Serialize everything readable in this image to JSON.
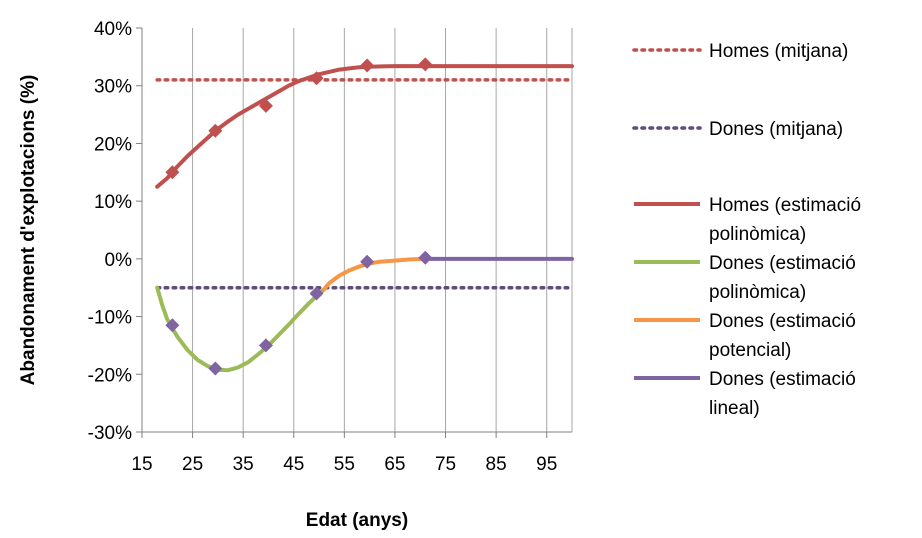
{
  "chart_data": {
    "type": "line",
    "title": "",
    "xlabel": "Edat (anys)",
    "ylabel": "Abandonament d'explotacions (%)",
    "xlim": [
      15,
      100
    ],
    "ylim": [
      -30,
      40
    ],
    "x_ticks": [
      "15",
      "25",
      "35",
      "45",
      "55",
      "65",
      "75",
      "85",
      "95"
    ],
    "y_ticks": [
      "-30%",
      "-20%",
      "-10%",
      "0%",
      "10%",
      "20%",
      "30%",
      "40%"
    ],
    "grid": "vertical",
    "legend_position": "right",
    "series": [
      {
        "key": "homes_mitjana",
        "name": "Homes (mitjana)",
        "style": "dotted",
        "color": "#c0504d",
        "points": [
          [
            18,
            31
          ],
          [
            100,
            31
          ]
        ]
      },
      {
        "key": "dones_mitjana",
        "name": "Dones (mitjana)",
        "style": "dotted",
        "color": "#604a7b",
        "points": [
          [
            18,
            -5
          ],
          [
            100,
            -5
          ]
        ]
      },
      {
        "key": "homes_poli",
        "name": "Homes (estimació polinòmica)",
        "style": "solid",
        "color": "#c0504d",
        "points": [
          [
            18,
            12.5
          ],
          [
            20,
            14
          ],
          [
            22,
            16
          ],
          [
            24,
            17.8
          ],
          [
            26,
            19.4
          ],
          [
            28,
            21
          ],
          [
            30,
            22.5
          ],
          [
            32,
            23.8
          ],
          [
            34,
            25
          ],
          [
            36,
            26
          ],
          [
            38,
            27
          ],
          [
            40,
            28
          ],
          [
            42,
            29
          ],
          [
            44,
            30
          ],
          [
            46,
            30.8
          ],
          [
            48,
            31.4
          ],
          [
            50,
            32
          ],
          [
            52,
            32.4
          ],
          [
            54,
            32.8
          ],
          [
            56,
            33
          ],
          [
            58,
            33.2
          ],
          [
            60,
            33.3
          ],
          [
            65,
            33.4
          ],
          [
            70,
            33.4
          ],
          [
            72,
            33.4
          ],
          [
            100,
            33.4
          ]
        ]
      },
      {
        "key": "dones_poli",
        "name": "Dones (estimació polinòmica)",
        "style": "solid",
        "color": "#9bbb59",
        "points": [
          [
            18,
            -5
          ],
          [
            19,
            -8
          ],
          [
            20,
            -10.5
          ],
          [
            22,
            -13.5
          ],
          [
            24,
            -15.8
          ],
          [
            26,
            -17.5
          ],
          [
            28,
            -18.6
          ],
          [
            30,
            -19.2
          ],
          [
            32,
            -19.3
          ],
          [
            34,
            -18.8
          ],
          [
            36,
            -17.9
          ],
          [
            38,
            -16.5
          ],
          [
            40,
            -15
          ],
          [
            42,
            -13.2
          ],
          [
            44,
            -11.4
          ],
          [
            46,
            -9.5
          ],
          [
            48,
            -7.7
          ],
          [
            50,
            -6
          ],
          [
            51,
            -5.3
          ]
        ]
      },
      {
        "key": "dones_pot",
        "name": "Dones (estimació potencial)",
        "style": "solid",
        "color": "#f79646",
        "points": [
          [
            51,
            -5.3
          ],
          [
            52,
            -4.2
          ],
          [
            54,
            -2.9
          ],
          [
            56,
            -2
          ],
          [
            58,
            -1.3
          ],
          [
            60,
            -0.8
          ],
          [
            62,
            -0.5
          ],
          [
            65,
            -0.3
          ],
          [
            68,
            -0.1
          ],
          [
            71,
            0
          ]
        ]
      },
      {
        "key": "dones_lin",
        "name": "Dones (estimació lineal)",
        "style": "solid",
        "color": "#8064a2",
        "points": [
          [
            71,
            0
          ],
          [
            100,
            0
          ]
        ]
      }
    ],
    "markers": [
      {
        "series": "homes_poli",
        "color": "#c0504d",
        "points": [
          [
            21,
            15
          ],
          [
            29.5,
            22.2
          ],
          [
            39.5,
            26.5
          ],
          [
            49.5,
            31.3
          ],
          [
            59.5,
            33.5
          ],
          [
            71,
            33.7
          ]
        ]
      },
      {
        "series": "dones_lin",
        "color": "#8064a2",
        "points": [
          [
            21,
            -11.5
          ],
          [
            29.5,
            -19
          ],
          [
            39.5,
            -15
          ],
          [
            49.5,
            -6
          ],
          [
            59.5,
            -0.5
          ],
          [
            71,
            0.2
          ]
        ]
      }
    ]
  },
  "legend": [
    {
      "line": [
        "Homes (mitjana)"
      ],
      "style": "dotted",
      "color": "#c0504d"
    },
    {
      "line": [
        "Dones (mitjana)"
      ],
      "style": "dotted",
      "color": "#604a7b"
    },
    {
      "line": [
        "Homes (estimació",
        "polinòmica)"
      ],
      "style": "solid",
      "color": "#c0504d"
    },
    {
      "line": [
        "Dones (estimació",
        "polinòmica)"
      ],
      "style": "solid",
      "color": "#9bbb59"
    },
    {
      "line": [
        "Dones (estimació",
        "potencial)"
      ],
      "style": "solid",
      "color": "#f79646"
    },
    {
      "line": [
        "Dones (estimació",
        "lineal)"
      ],
      "style": "solid",
      "color": "#8064a2"
    }
  ]
}
